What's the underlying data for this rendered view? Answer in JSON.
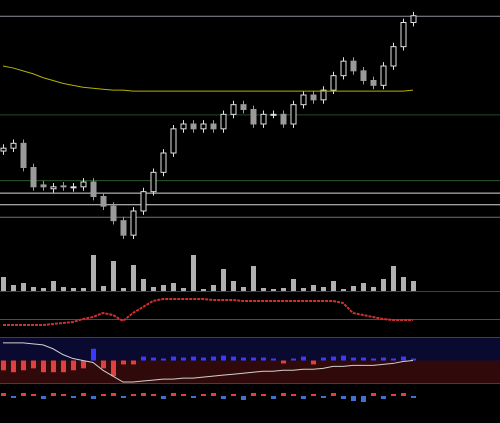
{
  "chart_data": [
    {
      "type": "candlestick",
      "ylim": [
        0,
        240
      ],
      "open": [
        92,
        95,
        100,
        75,
        57,
        53,
        56,
        54,
        55,
        60,
        45,
        35,
        20,
        5,
        30,
        50,
        70,
        90,
        115,
        120,
        115,
        120,
        115,
        130,
        140,
        135,
        120,
        130,
        130,
        120,
        140,
        150,
        145,
        155,
        170,
        185,
        175,
        165,
        160,
        180,
        200,
        225
      ],
      "high": [
        99,
        104,
        104,
        79,
        61,
        59,
        60,
        59,
        64,
        64,
        49,
        39,
        24,
        34,
        54,
        74,
        94,
        119,
        124,
        124,
        124,
        124,
        134,
        144,
        144,
        139,
        134,
        134,
        134,
        144,
        154,
        154,
        159,
        174,
        189,
        189,
        179,
        169,
        184,
        204,
        229,
        236
      ],
      "low": [
        88,
        91,
        71,
        51,
        51,
        49,
        51,
        50,
        51,
        41,
        31,
        16,
        1,
        1,
        26,
        46,
        66,
        86,
        111,
        111,
        111,
        111,
        111,
        126,
        131,
        116,
        116,
        126,
        116,
        116,
        136,
        141,
        141,
        151,
        166,
        171,
        161,
        156,
        156,
        176,
        196,
        221
      ],
      "close": [
        95,
        100,
        75,
        55,
        55,
        55,
        55,
        55,
        60,
        45,
        35,
        20,
        5,
        30,
        50,
        70,
        90,
        115,
        120,
        115,
        120,
        115,
        130,
        140,
        135,
        120,
        130,
        130,
        120,
        140,
        150,
        145,
        155,
        170,
        185,
        175,
        165,
        160,
        180,
        200,
        225,
        232
      ],
      "up_color": "#e0e0e0",
      "down_color": "#9a9a9a",
      "ma": [
        180,
        178,
        175,
        172,
        168,
        165,
        162,
        160,
        158,
        157,
        156,
        155,
        155,
        154,
        154,
        154,
        154,
        154,
        154,
        154,
        154,
        154,
        154,
        154,
        154,
        154,
        154,
        154,
        154,
        154,
        154,
        154,
        154,
        154,
        154,
        154,
        154,
        154,
        154,
        154,
        154,
        155
      ],
      "ma_color": "#b5b000",
      "hlines": [
        {
          "value": 232,
          "color": "#9090a0"
        },
        {
          "value": 130,
          "color": "#1f4a2a"
        },
        {
          "value": 62,
          "color": "#2a5a2a"
        },
        {
          "value": 49,
          "color": "#d8d8d8"
        },
        {
          "value": 37,
          "color": "#d8d8d8"
        },
        {
          "value": 24,
          "color": "#707070"
        }
      ]
    },
    {
      "type": "bar",
      "ylim": [
        0,
        40
      ],
      "up_color": "#b0b0b0",
      "down_color": "#b0b0b0",
      "values": [
        14,
        6,
        8,
        4,
        3,
        10,
        4,
        3,
        3,
        36,
        5,
        30,
        3,
        26,
        12,
        4,
        6,
        8,
        3,
        36,
        2,
        6,
        22,
        10,
        4,
        25,
        3,
        2,
        3,
        12,
        3,
        6,
        4,
        10,
        2,
        5,
        8,
        4,
        12,
        25,
        14,
        10
      ]
    },
    {
      "type": "line",
      "ylim": [
        0,
        35
      ],
      "color": "#d03030",
      "values": [
        2,
        2,
        2,
        2,
        2,
        3,
        4,
        5,
        8,
        10,
        14,
        12,
        6,
        14,
        20,
        26,
        28,
        28,
        28,
        28,
        28,
        27,
        27,
        27,
        26,
        26,
        26,
        26,
        26,
        26,
        26,
        26,
        26,
        26,
        24,
        14,
        12,
        10,
        8,
        7,
        7,
        7
      ],
      "hlines": [
        {
          "value": 8,
          "color": "#2050b0"
        }
      ]
    },
    {
      "type": "bar",
      "ylim": [
        -23,
        23
      ],
      "up_color": "#3a3aff",
      "down_color": "#e04040",
      "bg_colors": [
        "#0a0a30",
        "#300a0a"
      ],
      "values": [
        -10,
        -12,
        -10,
        -8,
        -12,
        -12,
        -12,
        -10,
        -8,
        12,
        -8,
        -16,
        -4,
        -4,
        4,
        3,
        2,
        4,
        3,
        4,
        3,
        4,
        5,
        4,
        3,
        3,
        3,
        2,
        -3,
        2,
        4,
        -4,
        3,
        4,
        5,
        3,
        3,
        2,
        3,
        2,
        4,
        2
      ],
      "line": [
        18,
        18,
        18,
        17,
        16,
        12,
        6,
        2,
        0,
        -2,
        -10,
        -16,
        -22,
        -22,
        -21,
        -20,
        -19,
        -19,
        -18,
        -18,
        -17,
        -16,
        -15,
        -14,
        -13,
        -12,
        -11,
        -11,
        -10,
        -10,
        -9,
        -9,
        -8,
        -6,
        -6,
        -5,
        -5,
        -5,
        -4,
        -3,
        -1,
        0
      ],
      "line_color": "#d0d0d0"
    },
    {
      "type": "bar",
      "ylim": [
        -8,
        8
      ],
      "up_color": "#e04040",
      "down_color": "#4070d0",
      "values": [
        3,
        -2,
        3,
        2,
        -3,
        3,
        2,
        -2,
        3,
        -3,
        2,
        3,
        -2,
        2,
        3,
        2,
        -3,
        3,
        2,
        -2,
        2,
        3,
        -3,
        2,
        -4,
        3,
        2,
        -3,
        3,
        2,
        -3,
        2,
        -2,
        3,
        -3,
        -5,
        -6,
        3,
        -3,
        2,
        3,
        -2
      ]
    }
  ]
}
